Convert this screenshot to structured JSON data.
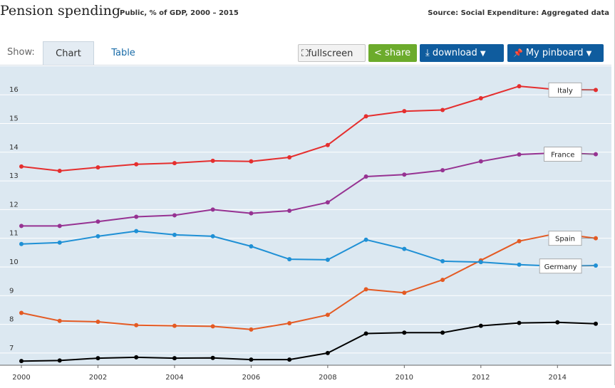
{
  "header": {
    "title": "Pension spending",
    "subtitle": "Public, % of GDP, 2000 – 2015",
    "source": "Source: Social Expenditure: Aggregated data"
  },
  "toolbar": {
    "show_label": "Show:",
    "tabs": [
      {
        "label": "Chart",
        "active": true
      },
      {
        "label": "Table",
        "active": false
      }
    ],
    "fullscreen_label": "fullscreen",
    "share_label": "share",
    "download_label": "download",
    "pinboard_label": "My pinboard",
    "caret": "▼",
    "fullscreen_icon": "⛶",
    "share_icon": "<",
    "download_icon": "⤓",
    "pin_icon": "📌"
  },
  "chart_data": {
    "type": "line",
    "title": "Pension spending",
    "subtitle": "Public, % of GDP, 2000 – 2015",
    "xlabel": "",
    "ylabel": "",
    "x": [
      2000,
      2001,
      2002,
      2003,
      2004,
      2005,
      2006,
      2007,
      2008,
      2009,
      2010,
      2011,
      2012,
      2013,
      2014,
      2015
    ],
    "xticks": [
      "2000",
      "2002",
      "2004",
      "2006",
      "2008",
      "2010",
      "2012",
      "2014"
    ],
    "yticks": [
      "7",
      "8",
      "9",
      "10",
      "11",
      "12",
      "13",
      "14",
      "15",
      "16"
    ],
    "ylim": [
      6.6,
      16.6
    ],
    "xlim": [
      2000,
      2015.5
    ],
    "grid": true,
    "series": [
      {
        "name": "Italy",
        "color": "#e52e2e",
        "values": [
          13.5,
          13.35,
          13.47,
          13.58,
          13.62,
          13.7,
          13.68,
          13.82,
          14.25,
          15.25,
          15.43,
          15.47,
          15.88,
          16.3,
          16.18,
          16.17
        ]
      },
      {
        "name": "France",
        "color": "#963292",
        "values": [
          11.43,
          11.43,
          11.58,
          11.75,
          11.8,
          12.0,
          11.87,
          11.96,
          12.25,
          13.15,
          13.22,
          13.37,
          13.68,
          13.92,
          13.98,
          13.93
        ]
      },
      {
        "name": "Spain",
        "color": "#e45a23",
        "values": [
          8.4,
          8.12,
          8.09,
          7.97,
          7.95,
          7.93,
          7.82,
          8.04,
          8.33,
          9.22,
          9.1,
          9.55,
          10.23,
          10.9,
          11.17,
          11.0
        ]
      },
      {
        "name": "Germany",
        "color": "#1f90d5",
        "values": [
          10.8,
          10.85,
          11.07,
          11.25,
          11.12,
          11.07,
          10.72,
          10.27,
          10.25,
          10.95,
          10.63,
          10.2,
          10.17,
          10.08,
          10.03,
          10.05
        ]
      },
      {
        "color": "#000000",
        "values": [
          6.72,
          6.74,
          6.82,
          6.85,
          6.82,
          6.83,
          6.77,
          6.77,
          7.0,
          7.68,
          7.71,
          7.71,
          7.95,
          8.05,
          8.07,
          8.02
        ]
      }
    ]
  }
}
